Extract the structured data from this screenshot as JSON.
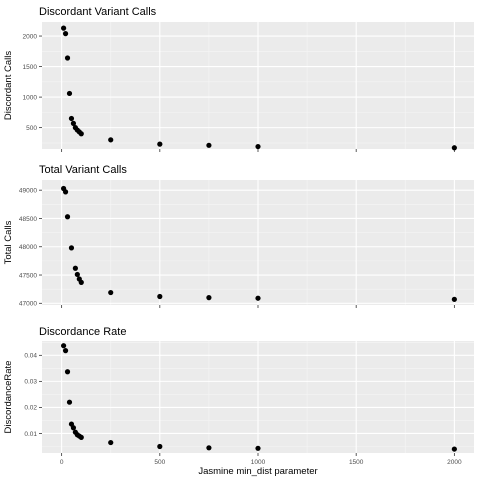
{
  "chart_data": [
    {
      "type": "scatter",
      "title": "Discordant Variant Calls",
      "xlabel": "",
      "ylabel": "Discordant Calls",
      "xlim": [
        -100,
        2100
      ],
      "ylim": [
        150,
        2230
      ],
      "x_ticks": [
        0,
        500,
        1000,
        1500,
        2000
      ],
      "y_ticks": [
        500,
        1000,
        1500,
        2000
      ],
      "y_tick_labels": [
        "500",
        "1000",
        "1500",
        "2000"
      ],
      "grid": true,
      "series": [
        {
          "x": [
            10,
            20,
            30,
            40,
            50,
            60,
            70,
            80,
            90,
            100,
            250,
            500,
            750,
            1000,
            2000
          ],
          "y": [
            2130,
            2040,
            1640,
            1060,
            650,
            570,
            500,
            460,
            430,
            400,
            300,
            230,
            210,
            190,
            170
          ]
        }
      ]
    },
    {
      "type": "scatter",
      "title": "Total Variant Calls",
      "xlabel": "",
      "ylabel": "Total Calls",
      "xlim": [
        -100,
        2100
      ],
      "ylim": [
        46970,
        49180
      ],
      "x_ticks": [
        0,
        500,
        1000,
        1500,
        2000
      ],
      "y_ticks": [
        47000,
        47500,
        48000,
        48500,
        49000
      ],
      "y_tick_labels": [
        "47000",
        "47500",
        "48000",
        "48500",
        "49000"
      ],
      "grid": true,
      "series": [
        {
          "x": [
            10,
            20,
            30,
            50,
            70,
            80,
            90,
            100,
            250,
            500,
            750,
            1000,
            2000
          ],
          "y": [
            49030,
            48970,
            48530,
            47980,
            47620,
            47510,
            47430,
            47370,
            47190,
            47120,
            47100,
            47090,
            47070
          ]
        }
      ]
    },
    {
      "type": "scatter",
      "title": "Discordance Rate",
      "xlabel": "Jasmine min_dist parameter",
      "ylabel": "DiscordanceRate",
      "xlim": [
        -100,
        2100
      ],
      "ylim": [
        0.0025,
        0.0455
      ],
      "x_ticks": [
        0,
        500,
        1000,
        1500,
        2000
      ],
      "x_tick_labels": [
        "0",
        "500",
        "1000",
        "1500",
        "2000"
      ],
      "y_ticks": [
        0.01,
        0.02,
        0.03,
        0.04
      ],
      "y_tick_labels": [
        "0.01",
        "0.02",
        "0.03",
        "0.04"
      ],
      "grid": true,
      "series": [
        {
          "x": [
            10,
            20,
            30,
            40,
            50,
            60,
            70,
            80,
            90,
            100,
            250,
            500,
            750,
            1000,
            2000
          ],
          "y": [
            0.0437,
            0.0418,
            0.0337,
            0.022,
            0.0136,
            0.0122,
            0.0105,
            0.0095,
            0.009,
            0.0085,
            0.0065,
            0.005,
            0.0045,
            0.0043,
            0.004
          ]
        }
      ]
    }
  ],
  "colors": {
    "panel_background": "#ebebeb",
    "grid_major": "#ffffff",
    "grid_minor": "#f5f5f5",
    "point": "#000000",
    "tick_label": "#4d4d4d",
    "text": "#000000"
  }
}
